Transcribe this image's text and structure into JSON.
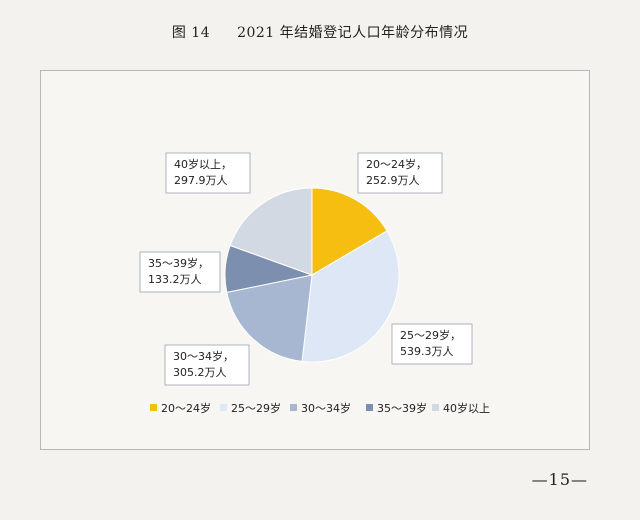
{
  "figure": {
    "number": "图 14",
    "caption": "2021 年结婚登记人口年龄分布情况",
    "page_number": "—15—"
  },
  "chart_data": {
    "type": "pie",
    "title": "",
    "unit": "万人",
    "slices": [
      {
        "label": "20～24岁",
        "value": 252.9,
        "display": "252.9万人",
        "color": "#f6be11"
      },
      {
        "label": "25～29岁",
        "value": 539.3,
        "display": "539.3万人",
        "color": "#dde7f5"
      },
      {
        "label": "30～34岁",
        "value": 305.2,
        "display": "305.2万人",
        "color": "#a8b7d1"
      },
      {
        "label": "35～39岁",
        "value": 133.2,
        "display": "133.2万人",
        "color": "#7d8fae"
      },
      {
        "label": "40岁以上",
        "value": 297.9,
        "display": "297.9万人",
        "color": "#d3d9e3"
      }
    ],
    "legend_position": "bottom",
    "start_angle_deg": 0,
    "direction": "clockwise"
  }
}
